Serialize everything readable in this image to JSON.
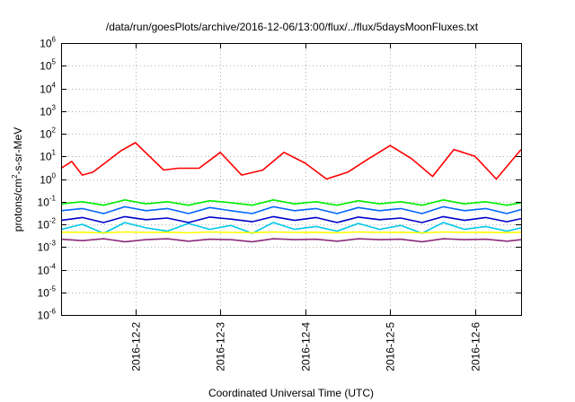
{
  "chart_data": {
    "type": "line",
    "title": "/data/run/goesPlots/archive/2016-12-06/13:00/flux/../flux/5daysMoonFluxes.txt",
    "xlabel": "Coordinated Universal Time (UTC)",
    "ylabel": "protons/cm²-s-sr-MeV",
    "ylabel_parts": {
      "prefix": "protons/cm",
      "sup": "2",
      "suffix": "-s-sr-MeV"
    },
    "yscale": "log",
    "ylim": [
      1e-06,
      1000000.0
    ],
    "xlim": [
      "2016-12-01T03:00",
      "2016-12-06T13:00"
    ],
    "grid": true,
    "x_ticks": [
      {
        "at": "2016-12-02T00:00",
        "label": "2016-12-2"
      },
      {
        "at": "2016-12-03T00:00",
        "label": "2016-12-3"
      },
      {
        "at": "2016-12-04T00:00",
        "label": "2016-12-4"
      },
      {
        "at": "2016-12-05T00:00",
        "label": "2016-12-5"
      },
      {
        "at": "2016-12-06T00:00",
        "label": "2016-12-6"
      }
    ],
    "y_ticks": [
      {
        "value": 1e-06,
        "base": "10",
        "exp": "-6"
      },
      {
        "value": 1e-05,
        "base": "10",
        "exp": "-5"
      },
      {
        "value": 0.0001,
        "base": "10",
        "exp": "-4"
      },
      {
        "value": 0.001,
        "base": "10",
        "exp": "-3"
      },
      {
        "value": 0.01,
        "base": "10",
        "exp": "-2"
      },
      {
        "value": 0.1,
        "base": "10",
        "exp": "-1"
      },
      {
        "value": 1.0,
        "base": "10",
        "exp": "0"
      },
      {
        "value": 10.0,
        "base": "10",
        "exp": "1"
      },
      {
        "value": 100.0,
        "base": "10",
        "exp": "2"
      },
      {
        "value": 1000.0,
        "base": "10",
        "exp": "3"
      },
      {
        "value": 10000.0,
        "base": "10",
        "exp": "4"
      },
      {
        "value": 100000.0,
        "base": "10",
        "exp": "5"
      },
      {
        "value": 1000000.0,
        "base": "10",
        "exp": "6"
      }
    ],
    "series": [
      {
        "color": "#00ee00",
        "x": [
          "2016-12-01T03:00",
          "2016-12-01T09:00",
          "2016-12-01T15:00",
          "2016-12-01T21:00",
          "2016-12-02T03:00",
          "2016-12-02T09:00",
          "2016-12-02T15:00",
          "2016-12-02T21:00",
          "2016-12-03T03:00",
          "2016-12-03T09:00",
          "2016-12-03T15:00",
          "2016-12-03T21:00",
          "2016-12-04T03:00",
          "2016-12-04T09:00",
          "2016-12-04T15:00",
          "2016-12-04T21:00",
          "2016-12-05T03:00",
          "2016-12-05T09:00",
          "2016-12-05T15:00",
          "2016-12-05T21:00",
          "2016-12-06T03:00",
          "2016-12-06T09:00",
          "2016-12-06T13:00"
        ],
        "values": [
          0.08,
          0.1,
          0.07,
          0.12,
          0.08,
          0.1,
          0.07,
          0.11,
          0.09,
          0.07,
          0.12,
          0.08,
          0.1,
          0.07,
          0.11,
          0.08,
          0.1,
          0.07,
          0.12,
          0.08,
          0.1,
          0.07,
          0.09
        ]
      },
      {
        "color": "#00c8e8",
        "x": [
          "2016-12-01T03:00",
          "2016-12-01T09:00",
          "2016-12-01T15:00",
          "2016-12-01T21:00",
          "2016-12-02T03:00",
          "2016-12-02T09:00",
          "2016-12-02T15:00",
          "2016-12-02T21:00",
          "2016-12-03T03:00",
          "2016-12-03T09:00",
          "2016-12-03T15:00",
          "2016-12-03T21:00",
          "2016-12-04T03:00",
          "2016-12-04T09:00",
          "2016-12-04T15:00",
          "2016-12-04T21:00",
          "2016-12-05T03:00",
          "2016-12-05T09:00",
          "2016-12-05T15:00",
          "2016-12-05T21:00",
          "2016-12-06T03:00",
          "2016-12-06T09:00",
          "2016-12-06T13:00"
        ],
        "values": [
          0.006,
          0.01,
          0.004,
          0.012,
          0.007,
          0.005,
          0.011,
          0.006,
          0.009,
          0.004,
          0.012,
          0.006,
          0.008,
          0.005,
          0.011,
          0.006,
          0.009,
          0.004,
          0.012,
          0.006,
          0.008,
          0.005,
          0.007
        ]
      },
      {
        "color": "#0066ff",
        "x": [
          "2016-12-01T03:00",
          "2016-12-01T09:00",
          "2016-12-01T15:00",
          "2016-12-01T21:00",
          "2016-12-02T03:00",
          "2016-12-02T09:00",
          "2016-12-02T15:00",
          "2016-12-02T21:00",
          "2016-12-03T03:00",
          "2016-12-03T09:00",
          "2016-12-03T15:00",
          "2016-12-03T21:00",
          "2016-12-04T03:00",
          "2016-12-04T09:00",
          "2016-12-04T15:00",
          "2016-12-04T21:00",
          "2016-12-05T03:00",
          "2016-12-05T09:00",
          "2016-12-05T15:00",
          "2016-12-05T21:00",
          "2016-12-06T03:00",
          "2016-12-06T09:00",
          "2016-12-06T13:00"
        ],
        "values": [
          0.04,
          0.05,
          0.03,
          0.06,
          0.04,
          0.05,
          0.03,
          0.055,
          0.04,
          0.03,
          0.06,
          0.04,
          0.05,
          0.03,
          0.055,
          0.04,
          0.05,
          0.03,
          0.06,
          0.04,
          0.05,
          0.03,
          0.045
        ]
      },
      {
        "color": "#0000cc",
        "x": [
          "2016-12-01T03:00",
          "2016-12-01T09:00",
          "2016-12-01T15:00",
          "2016-12-01T21:00",
          "2016-12-02T03:00",
          "2016-12-02T09:00",
          "2016-12-02T15:00",
          "2016-12-02T21:00",
          "2016-12-03T03:00",
          "2016-12-03T09:00",
          "2016-12-03T15:00",
          "2016-12-03T21:00",
          "2016-12-04T03:00",
          "2016-12-04T09:00",
          "2016-12-04T15:00",
          "2016-12-04T21:00",
          "2016-12-05T03:00",
          "2016-12-05T09:00",
          "2016-12-05T15:00",
          "2016-12-05T21:00",
          "2016-12-06T03:00",
          "2016-12-06T09:00",
          "2016-12-06T13:00"
        ],
        "values": [
          0.015,
          0.02,
          0.012,
          0.022,
          0.016,
          0.019,
          0.012,
          0.021,
          0.017,
          0.013,
          0.022,
          0.015,
          0.02,
          0.012,
          0.021,
          0.016,
          0.019,
          0.012,
          0.022,
          0.015,
          0.02,
          0.013,
          0.018
        ]
      },
      {
        "color": "#ffff00",
        "x": [
          "2016-12-01T03:00",
          "2016-12-01T09:00",
          "2016-12-01T15:00",
          "2016-12-01T21:00",
          "2016-12-02T03:00",
          "2016-12-02T09:00",
          "2016-12-02T15:00",
          "2016-12-02T21:00",
          "2016-12-03T03:00",
          "2016-12-03T09:00",
          "2016-12-03T15:00",
          "2016-12-03T21:00",
          "2016-12-04T03:00",
          "2016-12-04T09:00",
          "2016-12-04T15:00",
          "2016-12-04T21:00",
          "2016-12-05T03:00",
          "2016-12-05T09:00",
          "2016-12-05T15:00",
          "2016-12-05T21:00",
          "2016-12-06T03:00",
          "2016-12-06T09:00",
          "2016-12-06T13:00"
        ],
        "values": [
          0.0045,
          0.0045,
          0.0042,
          0.0046,
          0.0044,
          0.0045,
          0.0042,
          0.0046,
          0.0044,
          0.0043,
          0.0046,
          0.0044,
          0.0045,
          0.0042,
          0.0046,
          0.0044,
          0.0045,
          0.0042,
          0.0046,
          0.0044,
          0.0045,
          0.0043,
          0.0045
        ]
      },
      {
        "color": "#8b2a7a",
        "x": [
          "2016-12-01T03:00",
          "2016-12-01T09:00",
          "2016-12-01T15:00",
          "2016-12-01T21:00",
          "2016-12-02T03:00",
          "2016-12-02T09:00",
          "2016-12-02T15:00",
          "2016-12-02T21:00",
          "2016-12-03T03:00",
          "2016-12-03T09:00",
          "2016-12-03T15:00",
          "2016-12-03T21:00",
          "2016-12-04T03:00",
          "2016-12-04T09:00",
          "2016-12-04T15:00",
          "2016-12-04T21:00",
          "2016-12-05T03:00",
          "2016-12-05T09:00",
          "2016-12-05T15:00",
          "2016-12-05T21:00",
          "2016-12-06T03:00",
          "2016-12-06T09:00",
          "2016-12-06T13:00"
        ],
        "values": [
          0.0022,
          0.0019,
          0.0023,
          0.0017,
          0.0021,
          0.0023,
          0.0018,
          0.0022,
          0.0021,
          0.0017,
          0.0023,
          0.0021,
          0.0022,
          0.0018,
          0.0023,
          0.0021,
          0.0022,
          0.0017,
          0.0023,
          0.0021,
          0.0022,
          0.0018,
          0.0021
        ]
      },
      {
        "color": "#ff0000",
        "x": [
          "2016-12-01T03:00",
          "2016-12-01T06:00",
          "2016-12-01T09:00",
          "2016-12-01T12:00",
          "2016-12-01T16:00",
          "2016-12-01T20:00",
          "2016-12-02T00:00",
          "2016-12-02T04:00",
          "2016-12-02T08:00",
          "2016-12-02T12:00",
          "2016-12-02T18:00",
          "2016-12-03T00:00",
          "2016-12-03T06:00",
          "2016-12-03T12:00",
          "2016-12-03T18:00",
          "2016-12-04T00:00",
          "2016-12-04T06:00",
          "2016-12-04T12:00",
          "2016-12-04T18:00",
          "2016-12-05T00:00",
          "2016-12-05T06:00",
          "2016-12-05T12:00",
          "2016-12-05T18:00",
          "2016-12-06T00:00",
          "2016-12-06T06:00",
          "2016-12-06T13:00"
        ],
        "values": [
          3,
          6,
          1.5,
          2,
          6,
          18,
          40,
          10,
          2.5,
          3,
          3,
          15,
          1.5,
          2.5,
          15,
          5,
          1,
          2,
          8,
          30,
          8,
          1.3,
          20,
          10,
          1,
          20
        ]
      }
    ]
  }
}
